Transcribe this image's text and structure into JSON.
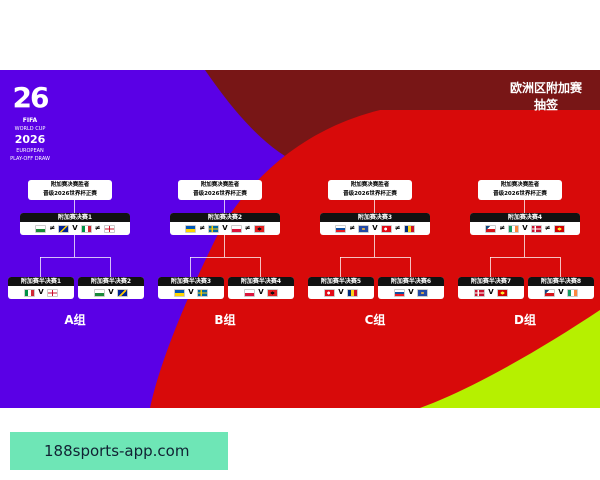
{
  "header": {
    "title_line1": "欧洲区附加赛",
    "title_line2": "抽签"
  },
  "logo": {
    "numerals": "26",
    "fifa": "FIFA",
    "line1": "WORLD CUP",
    "year": "2026",
    "line2": "EUROPEAN",
    "line3": "PLAY-OFF DRAW"
  },
  "colors": {
    "purple": "#5a00e6",
    "red": "#d80a0a",
    "dark_red": "#781616",
    "lime": "#b6f000",
    "site_bg": "#6ee6b6"
  },
  "flags": {
    "wales": "linear-gradient(#fff 50%,#1b8a3a 50%)",
    "bosnia": "linear-gradient(135deg,#002395 45%,#fecb00 45%,#fecb00 60%,#002395 60%)",
    "italy": "linear-gradient(90deg,#009246 33%,#fff 33%,#fff 66%,#ce2b37 66%)",
    "northern-ireland": "linear-gradient(90deg,transparent 44%,#c8102e 44%,#c8102e 56%,transparent 56%),linear-gradient(#fff 44%,#c8102e 44%,#c8102e 56%,#fff 56%)",
    "ukraine": "linear-gradient(#0057b7 50%,#ffd700 50%)",
    "sweden": "linear-gradient(90deg,transparent 30%,#fecc00 30%,#fecc00 44%,transparent 44%),linear-gradient(#006aa7 42%,#fecc00 42%,#fecc00 58%,#006aa7 58%)",
    "poland": "linear-gradient(#fff 50%,#dc143c 50%)",
    "albania": "radial-gradient(#111 30%,#e41e20 32%)",
    "slovakia": "linear-gradient(#fff 33%,#0b4ea2 33%,#0b4ea2 66%,#ee1c25 66%)",
    "kosovo": "radial-gradient(#d0a650 25%,#244aa5 28%)",
    "turkey": "radial-gradient(circle at 40% 50%,#fff 22%,#e30a17 25%)",
    "romania": "linear-gradient(90deg,#002b7f 33%,#fcd116 33%,#fcd116 66%,#ce1126 66%)",
    "czechia": "linear-gradient(135deg,#11457e 30%,transparent 30%),linear-gradient(#fff 50%,#d7141a 50%)",
    "ireland": "linear-gradient(90deg,#169b62 33%,#fff 33%,#fff 66%,#ff883e 66%)",
    "denmark": "linear-gradient(90deg,transparent 30%,#fff 30%,#fff 42%,transparent 42%),linear-gradient(#c8102e 42%,#fff 42%,#fff 58%,#c8102e 58%)",
    "north-macedonia": "radial-gradient(#f8e92e 30%,#d20000 33%)"
  },
  "winner_label": [
    "附加赛决赛胜者",
    "晋级2026世界杯正赛"
  ],
  "vs": "V",
  "or": "≠",
  "groups": [
    {
      "label": "A组",
      "final": {
        "title": "附加赛决赛1",
        "flags": [
          "wales",
          "bosnia",
          "italy",
          "northern-ireland"
        ]
      },
      "semis": [
        {
          "title": "附加赛半决赛1",
          "flags": [
            "italy",
            "northern-ireland"
          ]
        },
        {
          "title": "附加赛半决赛2",
          "flags": [
            "wales",
            "bosnia"
          ]
        }
      ]
    },
    {
      "label": "B组",
      "final": {
        "title": "附加赛决赛2",
        "flags": [
          "ukraine",
          "sweden",
          "poland",
          "albania"
        ]
      },
      "semis": [
        {
          "title": "附加赛半决赛3",
          "flags": [
            "ukraine",
            "sweden"
          ]
        },
        {
          "title": "附加赛半决赛4",
          "flags": [
            "poland",
            "albania"
          ]
        }
      ]
    },
    {
      "label": "C组",
      "final": {
        "title": "附加赛决赛3",
        "flags": [
          "slovakia",
          "kosovo",
          "turkey",
          "romania"
        ]
      },
      "semis": [
        {
          "title": "附加赛半决赛5",
          "flags": [
            "turkey",
            "romania"
          ]
        },
        {
          "title": "附加赛半决赛6",
          "flags": [
            "slovakia",
            "kosovo"
          ]
        }
      ]
    },
    {
      "label": "D组",
      "final": {
        "title": "附加赛决赛4",
        "flags": [
          "czechia",
          "ireland",
          "denmark",
          "north-macedonia"
        ]
      },
      "semis": [
        {
          "title": "附加赛半决赛7",
          "flags": [
            "denmark",
            "north-macedonia"
          ]
        },
        {
          "title": "附加赛半决赛8",
          "flags": [
            "czechia",
            "ireland"
          ]
        }
      ]
    }
  ],
  "footer": {
    "site": "188sports-app.com"
  }
}
